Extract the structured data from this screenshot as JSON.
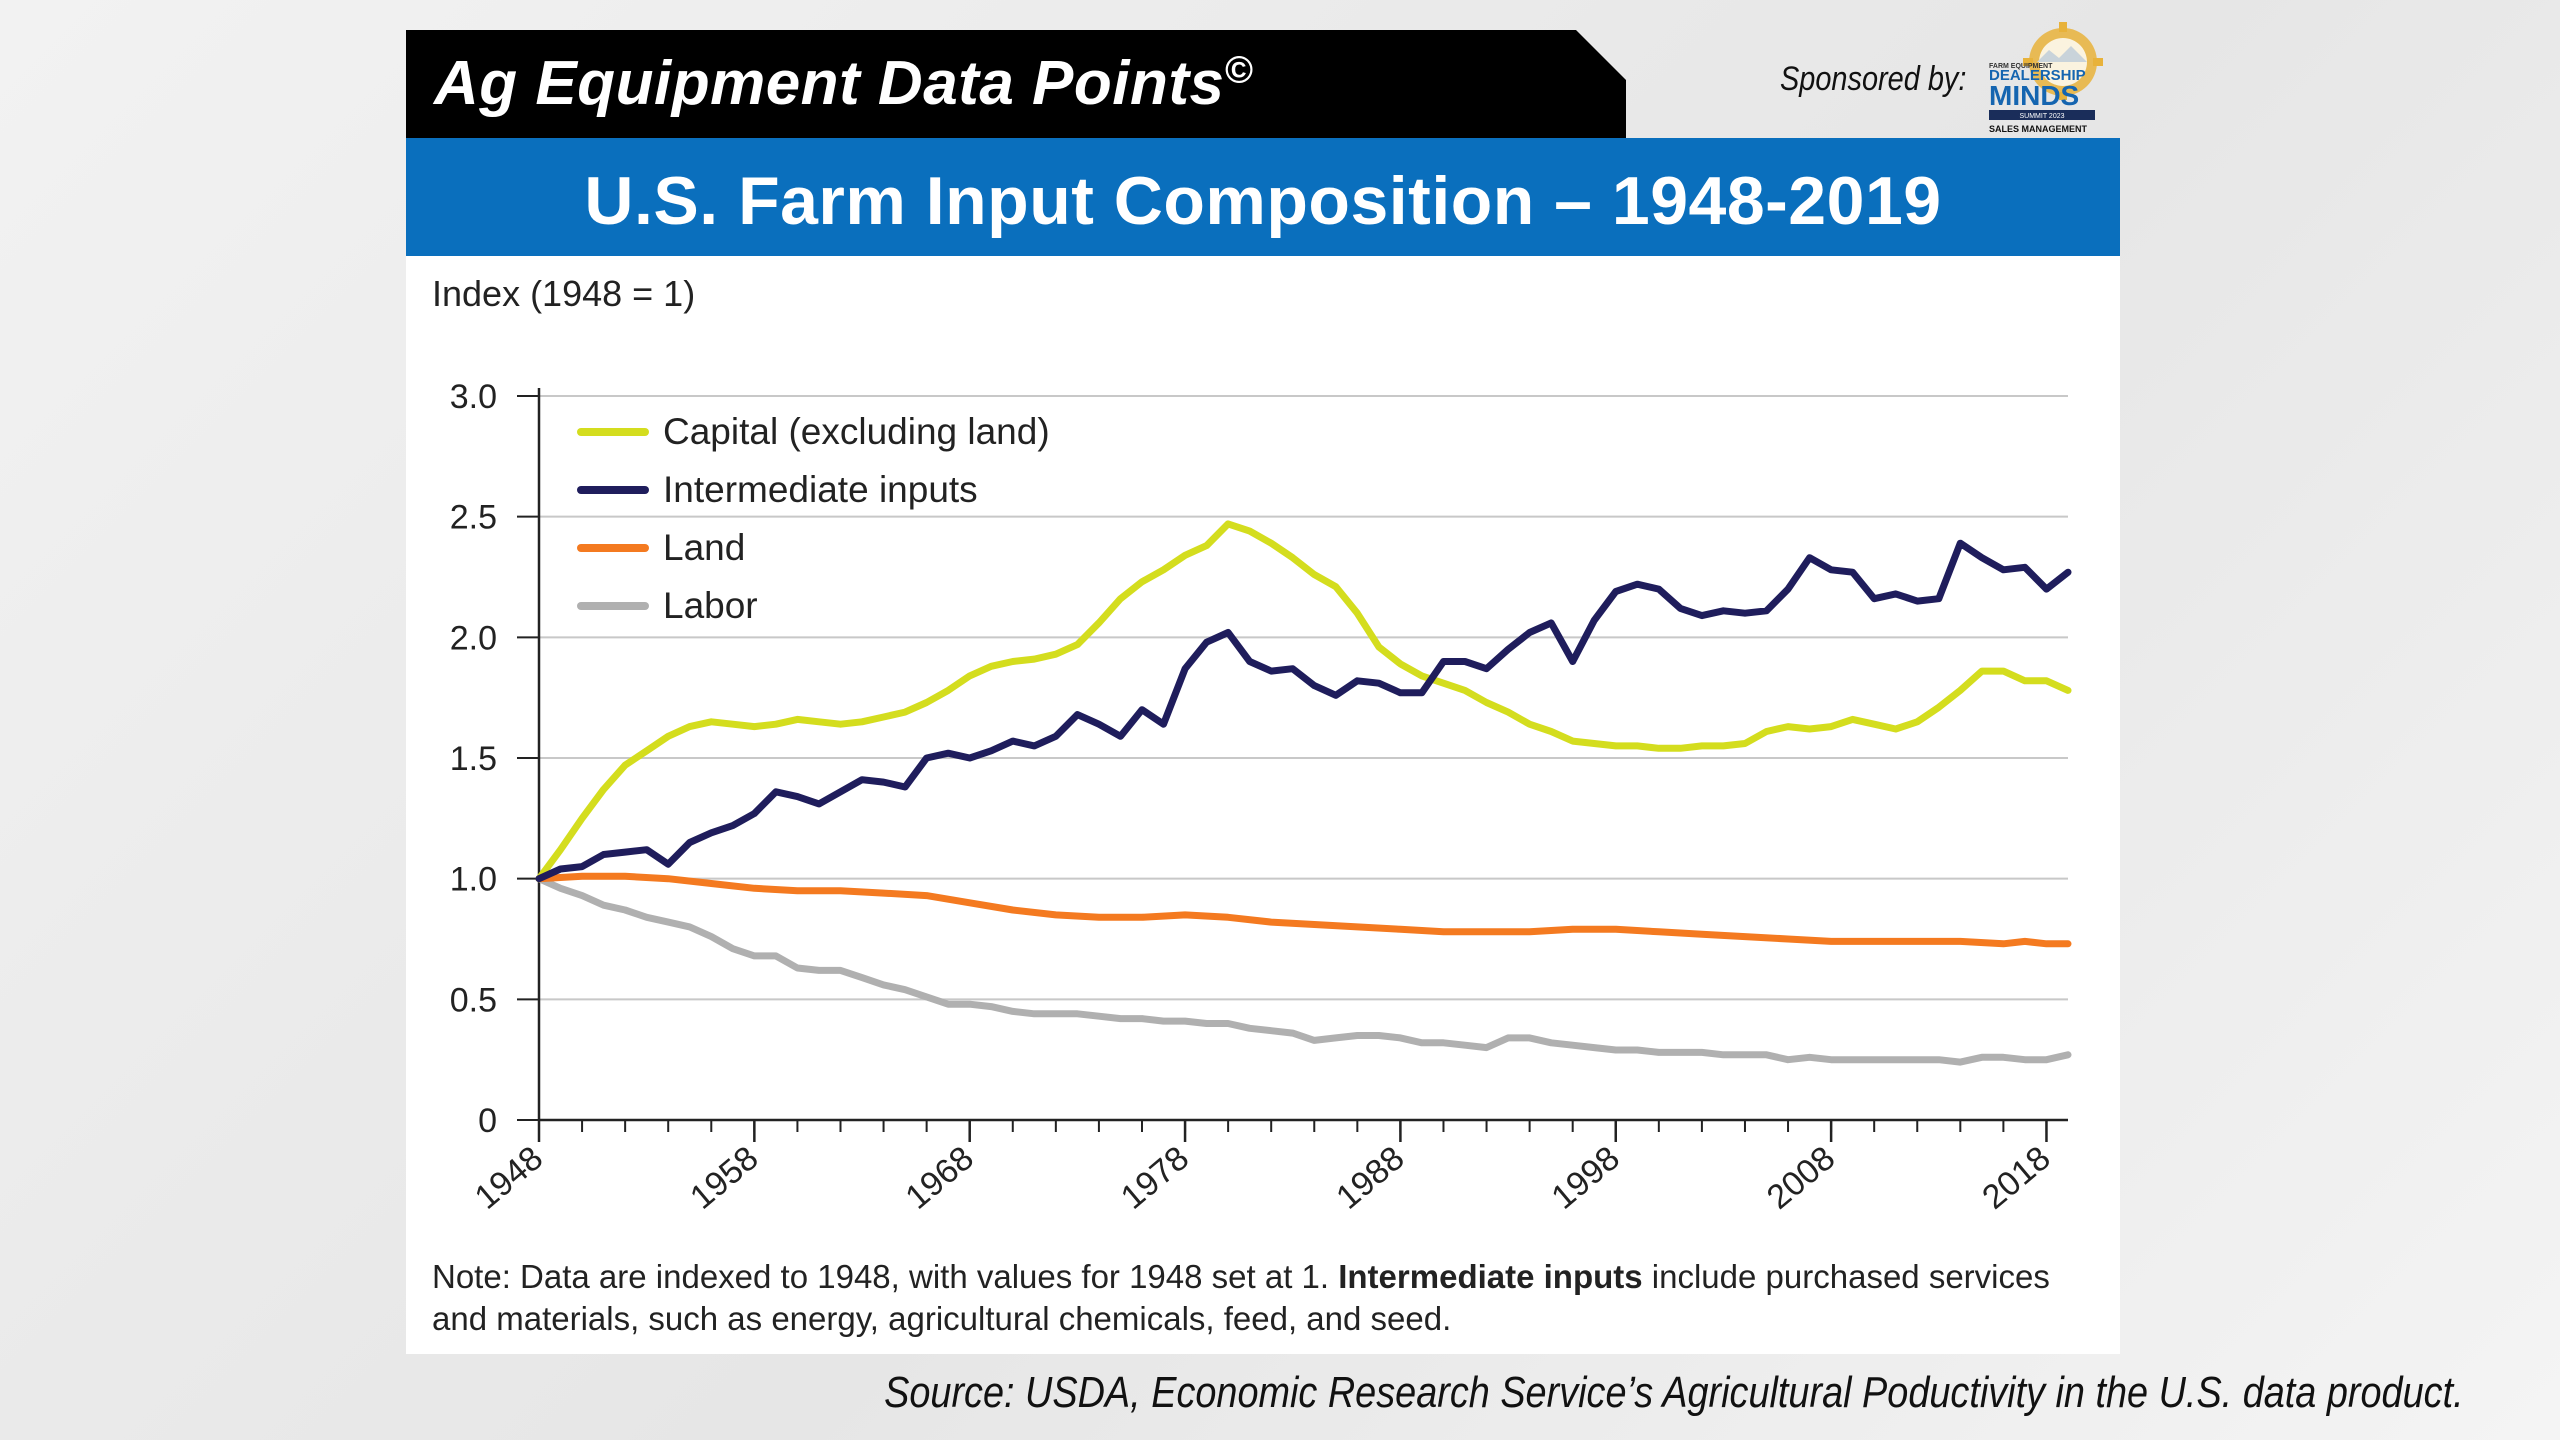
{
  "header": {
    "title": "Ag Equipment Data Points",
    "copyright": "©",
    "sponsor_label": "Sponsored by:",
    "logo": {
      "line1": "FARM EQUIPMENT",
      "line2": "DEALERSHIP",
      "line3": "MINDS",
      "line4": "SUMMIT 2023",
      "line5": "SALES MANAGEMENT",
      "icon": "gear-bulb-logo-icon"
    }
  },
  "colors": {
    "banner": "#0a6fbd",
    "capital": "#d4dd1e",
    "intermediate": "#1f1d5c",
    "land": "#f47a20",
    "labor": "#b0b0b0"
  },
  "chart_data": {
    "type": "line",
    "title": "U.S. Farm Input Composition – 1948-2019",
    "ylabel": "Index (1948 = 1)",
    "xlabel": "",
    "ylim": [
      0,
      3.0
    ],
    "xlim": [
      1948,
      2019
    ],
    "yticks": [
      "0",
      "0.5",
      "1.0",
      "1.5",
      "2.0",
      "2.5",
      "3.0"
    ],
    "ytick_values": [
      0,
      0.5,
      1.0,
      1.5,
      2.0,
      2.5,
      3.0
    ],
    "xticks": [
      "1948",
      "1958",
      "1968",
      "1978",
      "1988",
      "1998",
      "2008",
      "2018"
    ],
    "xtick_values": [
      1948,
      1958,
      1968,
      1978,
      1988,
      1998,
      2008,
      2018
    ],
    "grid": "horizontal",
    "legend_position": "top-left",
    "series": [
      {
        "name": "Capital (excluding land)",
        "key": "capital",
        "x": [
          1948,
          1949,
          1950,
          1951,
          1952,
          1953,
          1954,
          1955,
          1956,
          1957,
          1958,
          1959,
          1960,
          1961,
          1962,
          1963,
          1964,
          1965,
          1966,
          1967,
          1968,
          1969,
          1970,
          1971,
          1972,
          1973,
          1974,
          1975,
          1976,
          1977,
          1978,
          1979,
          1980,
          1981,
          1982,
          1983,
          1984,
          1985,
          1986,
          1987,
          1988,
          1989,
          1990,
          1991,
          1992,
          1993,
          1994,
          1995,
          1996,
          1997,
          1998,
          1999,
          2000,
          2001,
          2002,
          2003,
          2004,
          2005,
          2006,
          2007,
          2008,
          2009,
          2010,
          2011,
          2012,
          2013,
          2014,
          2015,
          2016,
          2017,
          2018,
          2019
        ],
        "values": [
          1.0,
          1.12,
          1.25,
          1.37,
          1.47,
          1.53,
          1.59,
          1.63,
          1.65,
          1.64,
          1.63,
          1.64,
          1.66,
          1.65,
          1.64,
          1.65,
          1.67,
          1.69,
          1.73,
          1.78,
          1.84,
          1.88,
          1.9,
          1.91,
          1.93,
          1.97,
          2.06,
          2.16,
          2.23,
          2.28,
          2.34,
          2.38,
          2.47,
          2.44,
          2.39,
          2.33,
          2.26,
          2.21,
          2.1,
          1.96,
          1.89,
          1.84,
          1.81,
          1.78,
          1.73,
          1.69,
          1.64,
          1.61,
          1.57,
          1.56,
          1.55,
          1.55,
          1.54,
          1.54,
          1.55,
          1.55,
          1.56,
          1.61,
          1.63,
          1.62,
          1.63,
          1.66,
          1.64,
          1.62,
          1.65,
          1.71,
          1.78,
          1.86,
          1.86,
          1.82,
          1.82,
          1.78
        ]
      },
      {
        "name": "Intermediate inputs",
        "key": "intermediate",
        "x": [
          1948,
          1949,
          1950,
          1951,
          1952,
          1953,
          1954,
          1955,
          1956,
          1957,
          1958,
          1959,
          1960,
          1961,
          1962,
          1963,
          1964,
          1965,
          1966,
          1967,
          1968,
          1969,
          1970,
          1971,
          1972,
          1973,
          1974,
          1975,
          1976,
          1977,
          1978,
          1979,
          1980,
          1981,
          1982,
          1983,
          1984,
          1985,
          1986,
          1987,
          1988,
          1989,
          1990,
          1991,
          1992,
          1993,
          1994,
          1995,
          1996,
          1997,
          1998,
          1999,
          2000,
          2001,
          2002,
          2003,
          2004,
          2005,
          2006,
          2007,
          2008,
          2009,
          2010,
          2011,
          2012,
          2013,
          2014,
          2015,
          2016,
          2017,
          2018,
          2019
        ],
        "values": [
          1.0,
          1.04,
          1.05,
          1.1,
          1.11,
          1.12,
          1.06,
          1.15,
          1.19,
          1.22,
          1.27,
          1.36,
          1.34,
          1.31,
          1.36,
          1.41,
          1.4,
          1.38,
          1.5,
          1.52,
          1.5,
          1.53,
          1.57,
          1.55,
          1.59,
          1.68,
          1.64,
          1.59,
          1.7,
          1.64,
          1.87,
          1.98,
          2.02,
          1.9,
          1.86,
          1.87,
          1.8,
          1.76,
          1.82,
          1.81,
          1.77,
          1.77,
          1.9,
          1.9,
          1.87,
          1.95,
          2.02,
          2.06,
          1.9,
          2.07,
          2.19,
          2.22,
          2.2,
          2.12,
          2.09,
          2.11,
          2.1,
          2.11,
          2.2,
          2.33,
          2.28,
          2.27,
          2.16,
          2.18,
          2.15,
          2.16,
          2.39,
          2.33,
          2.28,
          2.29,
          2.2,
          2.27
        ]
      },
      {
        "name": "Land",
        "key": "land",
        "x": [
          1948,
          1950,
          1952,
          1954,
          1956,
          1958,
          1960,
          1962,
          1964,
          1966,
          1968,
          1970,
          1972,
          1974,
          1976,
          1978,
          1980,
          1982,
          1984,
          1986,
          1988,
          1990,
          1992,
          1994,
          1996,
          1998,
          2000,
          2002,
          2004,
          2006,
          2008,
          2010,
          2012,
          2014,
          2016,
          2017,
          2018,
          2019
        ],
        "values": [
          1.0,
          1.01,
          1.01,
          1.0,
          0.98,
          0.96,
          0.95,
          0.95,
          0.94,
          0.93,
          0.9,
          0.87,
          0.85,
          0.84,
          0.84,
          0.85,
          0.84,
          0.82,
          0.81,
          0.8,
          0.79,
          0.78,
          0.78,
          0.78,
          0.79,
          0.79,
          0.78,
          0.77,
          0.76,
          0.75,
          0.74,
          0.74,
          0.74,
          0.74,
          0.73,
          0.74,
          0.73,
          0.73
        ]
      },
      {
        "name": "Labor",
        "key": "labor",
        "x": [
          1948,
          1949,
          1950,
          1951,
          1952,
          1953,
          1954,
          1955,
          1956,
          1957,
          1958,
          1959,
          1960,
          1961,
          1962,
          1963,
          1964,
          1965,
          1966,
          1967,
          1968,
          1969,
          1970,
          1971,
          1972,
          1973,
          1974,
          1975,
          1976,
          1977,
          1978,
          1979,
          1980,
          1981,
          1982,
          1983,
          1984,
          1985,
          1986,
          1987,
          1988,
          1989,
          1990,
          1991,
          1992,
          1993,
          1994,
          1995,
          1996,
          1997,
          1998,
          1999,
          2000,
          2001,
          2002,
          2003,
          2004,
          2005,
          2006,
          2007,
          2008,
          2009,
          2010,
          2011,
          2012,
          2013,
          2014,
          2015,
          2016,
          2017,
          2018,
          2019
        ],
        "values": [
          1.0,
          0.96,
          0.93,
          0.89,
          0.87,
          0.84,
          0.82,
          0.8,
          0.76,
          0.71,
          0.68,
          0.68,
          0.63,
          0.62,
          0.62,
          0.59,
          0.56,
          0.54,
          0.51,
          0.48,
          0.48,
          0.47,
          0.45,
          0.44,
          0.44,
          0.44,
          0.43,
          0.42,
          0.42,
          0.41,
          0.41,
          0.4,
          0.4,
          0.38,
          0.37,
          0.36,
          0.33,
          0.34,
          0.35,
          0.35,
          0.34,
          0.32,
          0.32,
          0.31,
          0.3,
          0.34,
          0.34,
          0.32,
          0.31,
          0.3,
          0.29,
          0.29,
          0.28,
          0.28,
          0.28,
          0.27,
          0.27,
          0.27,
          0.25,
          0.26,
          0.25,
          0.25,
          0.25,
          0.25,
          0.25,
          0.25,
          0.24,
          0.26,
          0.26,
          0.25,
          0.25,
          0.27
        ]
      }
    ]
  },
  "note": {
    "prefix": "Note: Data are indexed to 1948, with values for 1948 set at 1. ",
    "bold": "Intermediate inputs",
    "suffix": " include purchased services and materials, such as energy, agricultural chemicals, feed, and seed."
  },
  "source": "Source: USDA, Economic Research Service’s Agricultural Poductivity in the U.S. data product."
}
